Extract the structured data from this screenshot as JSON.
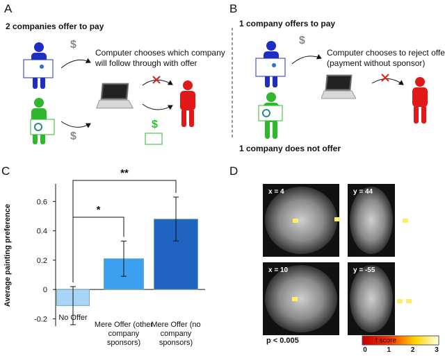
{
  "panel_a": {
    "label": "A",
    "heading": "2 companies offer to pay",
    "caption": [
      "Computer chooses which company",
      "will follow through with offer"
    ],
    "dollar": "$"
  },
  "panel_b": {
    "label": "B",
    "heading": "1 company offers to pay",
    "caption": [
      "Computer chooses to reject offer",
      "(payment without sponsor)"
    ],
    "footer": "1 company does not offer",
    "dollar": "$"
  },
  "chart_data": {
    "type": "bar",
    "panel_label": "C",
    "ylabel": "Average painting preference",
    "categories": [
      "No Offer",
      "Mere Offer (other company sponsors)",
      "Mere Offer (no company sponsors)"
    ],
    "values": [
      -0.11,
      0.21,
      0.48
    ],
    "errors": [
      0.13,
      0.12,
      0.15
    ],
    "colors": [
      "#a8d4f5",
      "#3d9ff0",
      "#1e63c0"
    ],
    "ylim": [
      -0.25,
      0.72
    ],
    "yticks": [
      -0.2,
      0,
      0.2,
      0.4,
      0.6
    ],
    "annotations": [
      "*",
      "**"
    ]
  },
  "panel_d": {
    "label": "D",
    "slices": [
      "x = 4",
      "y = 44",
      "x = 10",
      "y = -55"
    ],
    "threshold": "p < 0.005",
    "colorbar_label": "t score",
    "colorbar_ticks": [
      0,
      1,
      2,
      3
    ]
  }
}
